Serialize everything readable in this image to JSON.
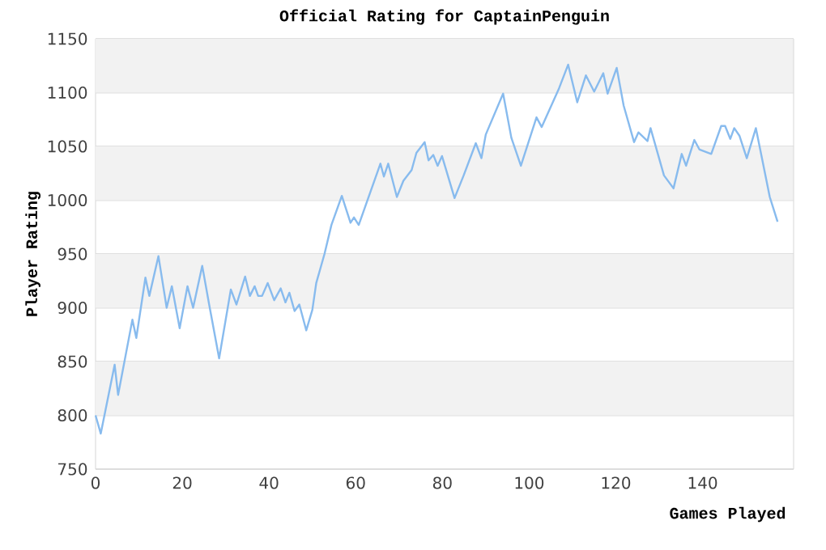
{
  "chart_data": {
    "type": "line",
    "title": "Official Rating for CaptainPenguin",
    "xlabel": "Games Played",
    "ylabel": "Player Rating",
    "x": [
      0,
      1.2,
      4.4,
      5.2,
      8.5,
      9.4,
      11.5,
      12.4,
      14.5,
      16.4,
      17.6,
      19.4,
      21.2,
      22.5,
      24.6,
      26.2,
      28.5,
      31.2,
      32.5,
      34.5,
      35.6,
      36.7,
      37.5,
      38.4,
      39.7,
      41.2,
      42.7,
      43.8,
      44.7,
      45.9,
      47,
      48.6,
      50,
      50.9,
      52.8,
      54.4,
      56.8,
      58.8,
      59.6,
      60.7,
      65.7,
      66.5,
      67.5,
      69.5,
      71,
      72.9,
      74,
      75.9,
      76.8,
      77.9,
      78.9,
      79.9,
      82.8,
      84.9,
      87.7,
      89,
      90,
      94,
      95.9,
      98.1,
      101.7,
      102.9,
      106.9,
      109,
      111.1,
      113.1,
      115,
      117.1,
      118.1,
      120.2,
      121.8,
      124.2,
      125.2,
      127.3,
      128,
      131.1,
      133.3,
      135.2,
      136.2,
      138.1,
      139.3,
      142,
      144.3,
      145.2,
      146.4,
      147.3,
      148.5,
      150.2,
      152.3,
      153.5,
      155.5,
      157.3
    ],
    "series": [
      {
        "color": "#88bbee",
        "values": [
          800,
          783,
          847,
          819,
          889,
          872,
          928,
          911,
          948,
          900,
          920,
          881,
          920,
          900,
          939,
          903,
          853,
          917,
          903,
          929,
          911,
          920,
          911,
          911,
          923,
          907,
          918,
          905,
          914,
          897,
          903,
          879,
          898,
          923,
          950,
          977,
          1004,
          979,
          984,
          977,
          1034,
          1022,
          1034,
          1003,
          1018,
          1028,
          1044,
          1054,
          1037,
          1042,
          1032,
          1041,
          1002,
          1023,
          1053,
          1039,
          1061,
          1099,
          1058,
          1032,
          1077,
          1068,
          1104,
          1126,
          1091,
          1116,
          1101,
          1118,
          1099,
          1123,
          1088,
          1054,
          1063,
          1055,
          1067,
          1023,
          1011,
          1043,
          1032,
          1056,
          1047,
          1043,
          1069,
          1069,
          1057,
          1067,
          1060,
          1039,
          1067,
          1043,
          1003,
          980
        ]
      }
    ],
    "xlim": [
      0,
      161
    ],
    "ylim": [
      750,
      1150
    ],
    "xticks": [
      0,
      20,
      40,
      60,
      80,
      100,
      120,
      140
    ],
    "yticks": [
      750,
      800,
      850,
      900,
      950,
      1000,
      1050,
      1100,
      1150
    ],
    "grid": "y",
    "marker": "none",
    "line_style": "solid"
  }
}
